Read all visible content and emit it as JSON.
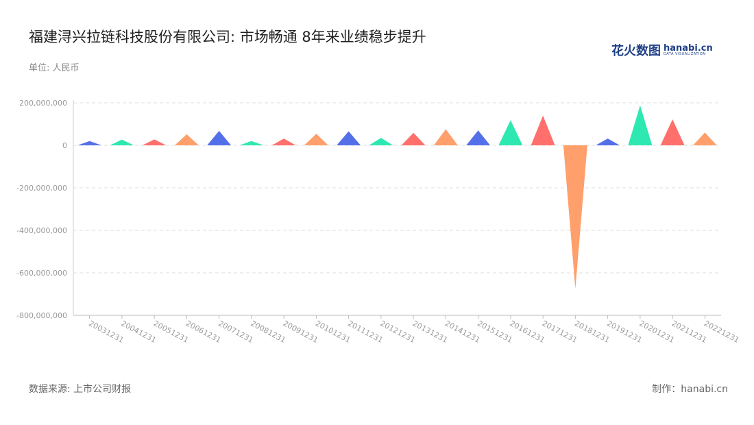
{
  "header": {
    "title": "福建浔兴拉链科技股份有限公司: 市场畅通 8年来业绩稳步提升",
    "unit": "单位: 人民币"
  },
  "logo": {
    "cn": "花火数图",
    "en": "hanabi.cn",
    "sub": "DATA VISUALIZATION"
  },
  "footer": {
    "source": "数据来源: 上市公司财报",
    "credit": "制作：hanabi.cn"
  },
  "colors": [
    "#5470e8",
    "#2de8b0",
    "#ff6f6b",
    "#ff9f6b"
  ],
  "chart_data": {
    "type": "bar",
    "mark": "triangle",
    "categories": [
      "20031231",
      "20041231",
      "20051231",
      "20061231",
      "20071231",
      "20081231",
      "20091231",
      "20101231",
      "20111231",
      "20121231",
      "20131231",
      "20141231",
      "20151231",
      "20161231",
      "20171231",
      "20181231",
      "20191231",
      "20201231",
      "20211231",
      "20221231"
    ],
    "values": [
      20000000,
      27000000,
      28000000,
      52000000,
      68000000,
      20000000,
      32000000,
      55000000,
      66000000,
      35000000,
      59000000,
      76000000,
      70000000,
      118000000,
      140000000,
      -675000000,
      32000000,
      188000000,
      122000000,
      60000000
    ],
    "ylim": [
      -800000000,
      200000000
    ],
    "yticks": [
      {
        "value": 200000000,
        "label": "200,000,000"
      },
      {
        "value": 0,
        "label": "0"
      },
      {
        "value": -200000000,
        "label": "-200,000,000"
      },
      {
        "value": -400000000,
        "label": "-400,000,000"
      },
      {
        "value": -600000000,
        "label": "-600,000,000"
      },
      {
        "value": -800000000,
        "label": "-800,000,000"
      }
    ],
    "grid": true,
    "xlabel": "",
    "ylabel": ""
  }
}
